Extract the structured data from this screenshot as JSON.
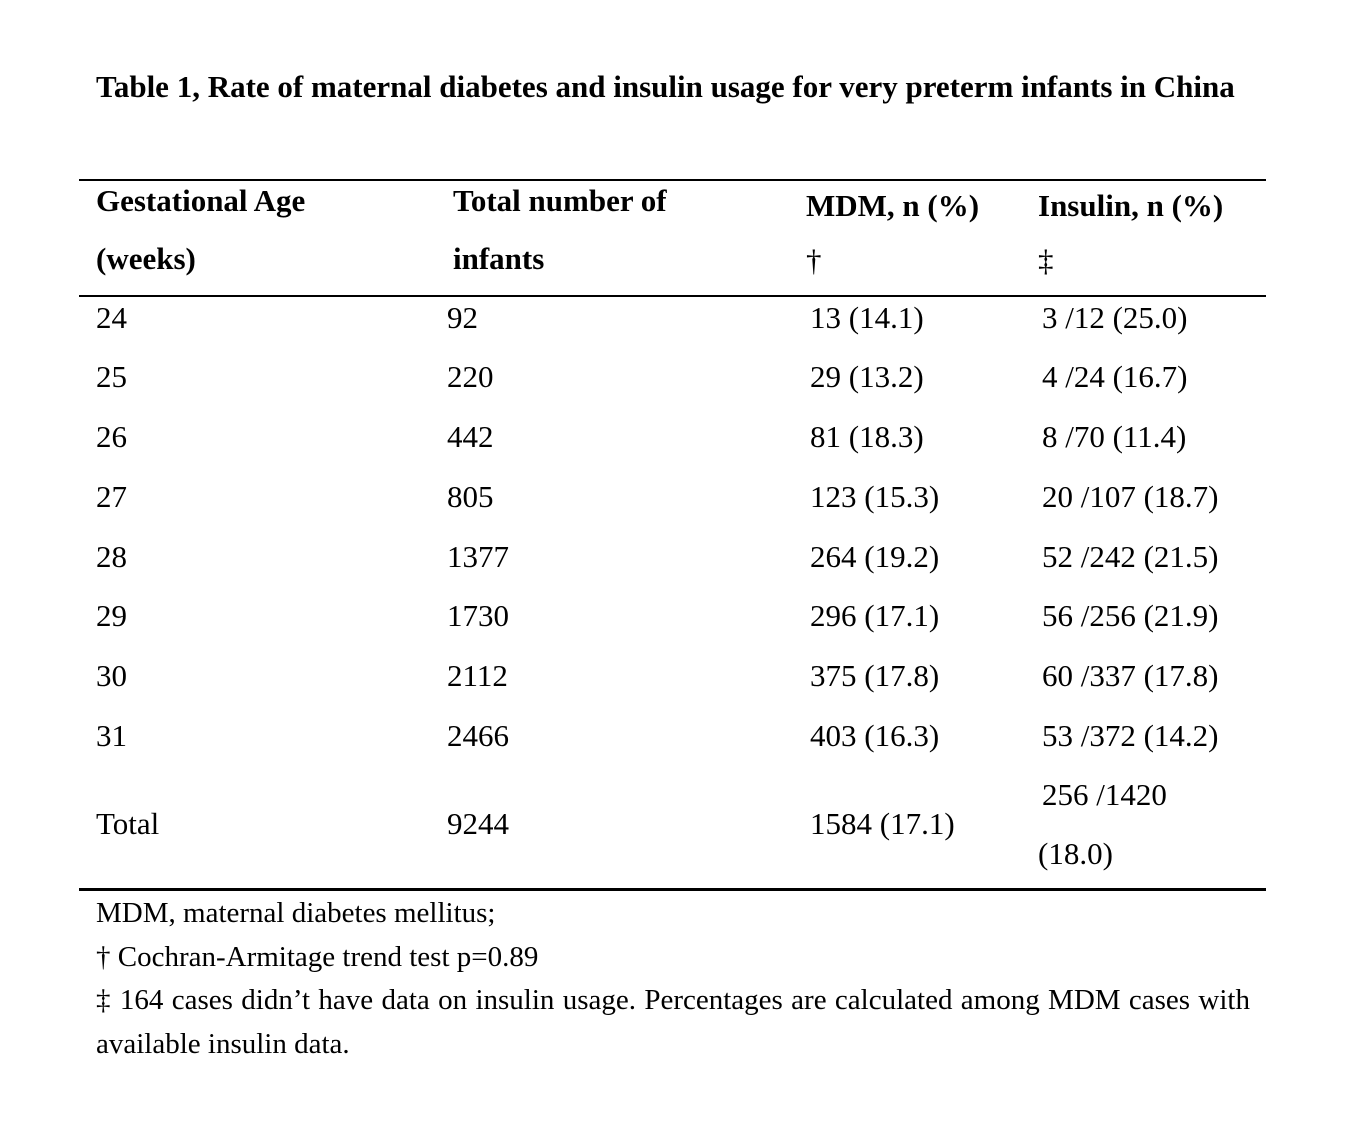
{
  "title": "Table 1, Rate of maternal diabetes and insulin usage for very preterm infants in China",
  "headers": {
    "col1_line1": "Gestational Age",
    "col1_line2": "(weeks)",
    "col2_line1": "Total number of",
    "col2_line2": "infants",
    "col3_line1": "MDM, n (%)",
    "col3_line2": "†",
    "col4_line1": "Insulin, n (%)",
    "col4_line2": "‡"
  },
  "rows": [
    {
      "ga": "24",
      "total": "92",
      "mdm": "13 (14.1)",
      "insulin": "3 /12 (25.0)"
    },
    {
      "ga": "25",
      "total": "220",
      "mdm": "29 (13.2)",
      "insulin": "4 /24 (16.7)"
    },
    {
      "ga": "26",
      "total": "442",
      "mdm": "81 (18.3)",
      "insulin": "8 /70 (11.4)"
    },
    {
      "ga": "27",
      "total": "805",
      "mdm": "123 (15.3)",
      "insulin": "20 /107 (18.7)"
    },
    {
      "ga": "28",
      "total": "1377",
      "mdm": "264 (19.2)",
      "insulin": "52 /242 (21.5)"
    },
    {
      "ga": "29",
      "total": "1730",
      "mdm": "296 (17.1)",
      "insulin": "56 /256 (21.9)"
    },
    {
      "ga": "30",
      "total": "2112",
      "mdm": "375 (17.8)",
      "insulin": "60 /337 (17.8)"
    },
    {
      "ga": "31",
      "total": "2466",
      "mdm": "403 (16.3)",
      "insulin": "53 /372 (14.2)"
    }
  ],
  "total_row": {
    "ga": "Total",
    "total": "9244",
    "mdm": "1584 (17.1)",
    "insulin_line1": "256 /1420",
    "insulin_line2": "(18.0)"
  },
  "notes": {
    "abbrev": "MDM, maternal diabetes mellitus;",
    "dagger": "† Cochran-Armitage trend test p=0.89",
    "ddagger": "‡ 164 cases didn’t have data on insulin usage. Percentages are calculated among MDM cases with available insulin data."
  }
}
